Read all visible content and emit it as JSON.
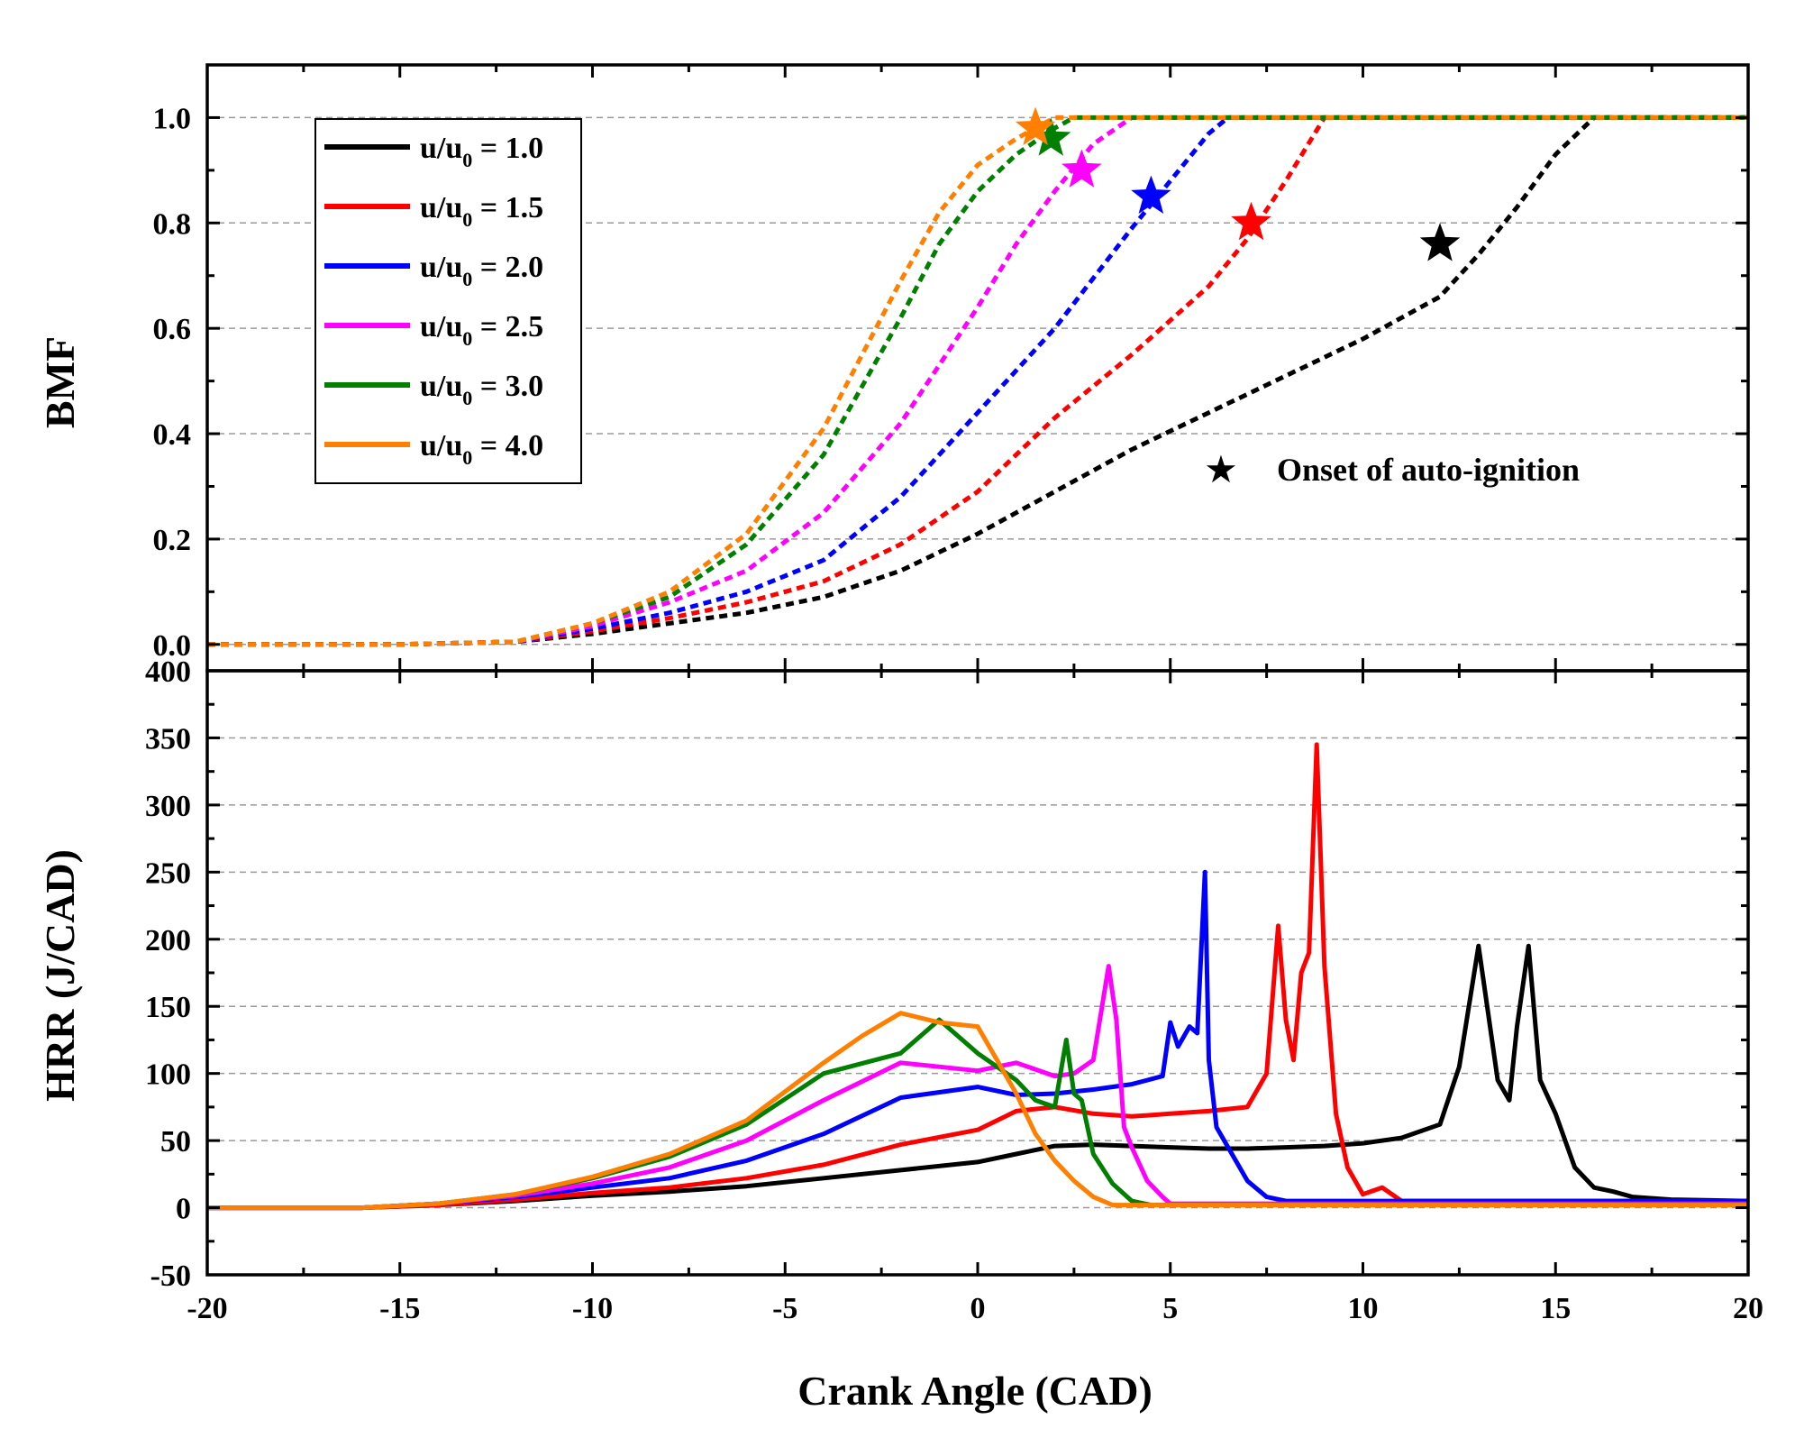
{
  "chart_data": [
    {
      "type": "line",
      "panel": "top",
      "title": "",
      "ylabel": "BMF",
      "xlim": [
        -20,
        20
      ],
      "ylim": [
        -0.05,
        1.1
      ],
      "xticks": [
        "-20",
        "-15",
        "-10",
        "-5",
        "0",
        "5",
        "10",
        "15",
        "20"
      ],
      "yticks": [
        "0.0",
        "0.2",
        "0.4",
        "0.6",
        "0.8",
        "1.0"
      ],
      "ytick_values": [
        0.0,
        0.2,
        0.4,
        0.6,
        0.8,
        1.0
      ],
      "grid": "horizontal dashed",
      "line_style": "dashed",
      "legend": {
        "position": "top-left",
        "entries": [
          {
            "sym": "u/u",
            "sub": "0",
            "rest": " = 1.0"
          },
          {
            "sym": "u/u",
            "sub": "0",
            "rest": " = 1.5"
          },
          {
            "sym": "u/u",
            "sub": "0",
            "rest": " = 2.0"
          },
          {
            "sym": "u/u",
            "sub": "0",
            "rest": " = 2.5"
          },
          {
            "sym": "u/u",
            "sub": "0",
            "rest": " = 3.0"
          },
          {
            "sym": "u/u",
            "sub": "0",
            "rest": " = 4.0"
          }
        ]
      },
      "annotation": {
        "symbol": "★",
        "text": "Onset of auto-ignition",
        "position": "right-middle"
      },
      "series": [
        {
          "color": "#000000",
          "x": [
            -20,
            -15,
            -12,
            -10,
            -8,
            -6,
            -4,
            -2,
            0,
            2,
            4,
            6,
            8,
            10,
            12,
            13,
            14,
            15,
            16,
            17,
            20
          ],
          "y": [
            0,
            0,
            0.005,
            0.02,
            0.04,
            0.06,
            0.09,
            0.14,
            0.21,
            0.29,
            0.37,
            0.44,
            0.51,
            0.58,
            0.66,
            0.74,
            0.83,
            0.93,
            1.0,
            1.0,
            1.0
          ],
          "marker": {
            "x": 12.0,
            "y": 0.76
          }
        },
        {
          "color": "#ff0000",
          "x": [
            -20,
            -15,
            -12,
            -10,
            -8,
            -6,
            -4,
            -2,
            0,
            2,
            4,
            6,
            7,
            8,
            9,
            10,
            20
          ],
          "y": [
            0,
            0,
            0.005,
            0.025,
            0.05,
            0.08,
            0.12,
            0.19,
            0.29,
            0.43,
            0.55,
            0.68,
            0.77,
            0.88,
            1.0,
            1.0,
            1.0
          ],
          "marker": {
            "x": 7.1,
            "y": 0.8
          }
        },
        {
          "color": "#0000ff",
          "x": [
            -20,
            -15,
            -12,
            -10,
            -8,
            -6,
            -4,
            -2,
            0,
            2,
            4,
            5,
            6,
            6.5,
            20
          ],
          "y": [
            0,
            0,
            0.005,
            0.03,
            0.06,
            0.1,
            0.16,
            0.28,
            0.44,
            0.6,
            0.79,
            0.88,
            0.97,
            1.0,
            1.0
          ],
          "marker": {
            "x": 4.5,
            "y": 0.85
          }
        },
        {
          "color": "#ff00ff",
          "x": [
            -20,
            -15,
            -12,
            -10,
            -8,
            -6,
            -4,
            -2,
            0,
            1,
            2,
            3,
            4,
            20
          ],
          "y": [
            0,
            0,
            0.005,
            0.035,
            0.08,
            0.14,
            0.25,
            0.42,
            0.64,
            0.76,
            0.86,
            0.95,
            1.0,
            1.0
          ],
          "marker": {
            "x": 2.7,
            "y": 0.9
          }
        },
        {
          "color": "#007f00",
          "x": [
            -20,
            -15,
            -12,
            -10,
            -8,
            -6,
            -4,
            -2,
            -1,
            0,
            1,
            2,
            2.5,
            20
          ],
          "y": [
            0,
            0,
            0.005,
            0.04,
            0.09,
            0.19,
            0.36,
            0.62,
            0.76,
            0.86,
            0.93,
            0.98,
            1.0,
            1.0
          ],
          "marker": {
            "x": 1.9,
            "y": 0.96
          }
        },
        {
          "color": "#ff7f00",
          "x": [
            -20,
            -15,
            -12,
            -10,
            -8,
            -6,
            -4,
            -2,
            -1,
            0,
            1,
            2,
            20
          ],
          "y": [
            0,
            0,
            0.005,
            0.04,
            0.1,
            0.21,
            0.41,
            0.69,
            0.82,
            0.91,
            0.96,
            1.0,
            1.0
          ],
          "marker": {
            "x": 1.5,
            "y": 0.98
          }
        }
      ]
    },
    {
      "type": "line",
      "panel": "bottom",
      "title": "",
      "xlabel": "Crank Angle (CAD)",
      "ylabel": "HRR (J/CAD)",
      "xlim": [
        -20,
        20
      ],
      "ylim": [
        -50,
        400
      ],
      "xticks": [
        "-20",
        "-15",
        "-10",
        "-5",
        "0",
        "5",
        "10",
        "15",
        "20"
      ],
      "xtick_values": [
        -20,
        -15,
        -10,
        -5,
        0,
        5,
        10,
        15,
        20
      ],
      "yticks": [
        "-50",
        "0",
        "50",
        "100",
        "150",
        "200",
        "250",
        "300",
        "350",
        "400"
      ],
      "ytick_values": [
        -50,
        0,
        50,
        100,
        150,
        200,
        250,
        300,
        350,
        400
      ],
      "grid": "horizontal dashed",
      "line_style": "solid",
      "series": [
        {
          "color": "#000000",
          "x": [
            -20,
            -16,
            -14,
            -12,
            -10,
            -8,
            -6,
            -4,
            -2,
            0,
            1,
            2,
            3,
            4,
            5,
            6,
            7,
            8,
            9,
            10,
            11,
            12,
            12.5,
            13,
            13.5,
            13.8,
            14,
            14.3,
            14.6,
            15,
            15.5,
            16,
            16.5,
            17,
            18,
            20
          ],
          "y": [
            0,
            0,
            2,
            5,
            9,
            12,
            16,
            22,
            28,
            34,
            40,
            46,
            47,
            46,
            45,
            44,
            44,
            45,
            46,
            48,
            52,
            62,
            105,
            195,
            95,
            80,
            135,
            195,
            95,
            70,
            30,
            15,
            12,
            8,
            6,
            5
          ]
        },
        {
          "color": "#ff0000",
          "x": [
            -20,
            -16,
            -14,
            -12,
            -10,
            -8,
            -6,
            -4,
            -2,
            0,
            1,
            2,
            3,
            4,
            5,
            6,
            7,
            7.5,
            7.8,
            8,
            8.2,
            8.4,
            8.6,
            8.8,
            9,
            9.3,
            9.6,
            10,
            10.5,
            11,
            12,
            14,
            16,
            18,
            20
          ],
          "y": [
            0,
            0,
            2,
            6,
            11,
            15,
            22,
            32,
            47,
            58,
            72,
            75,
            70,
            68,
            70,
            72,
            75,
            100,
            210,
            140,
            110,
            175,
            190,
            345,
            180,
            70,
            30,
            10,
            15,
            5,
            5,
            5,
            5,
            5,
            5
          ]
        },
        {
          "color": "#0000ff",
          "x": [
            -20,
            -16,
            -14,
            -12,
            -10,
            -8,
            -6,
            -4,
            -2,
            0,
            1,
            2,
            3,
            4,
            4.8,
            5,
            5.2,
            5.5,
            5.7,
            5.9,
            6,
            6.2,
            6.5,
            7,
            7.5,
            8,
            10,
            20
          ],
          "y": [
            0,
            0,
            3,
            8,
            15,
            22,
            35,
            55,
            82,
            90,
            84,
            85,
            88,
            92,
            98,
            138,
            120,
            135,
            130,
            250,
            110,
            60,
            45,
            20,
            8,
            5,
            5,
            5
          ]
        },
        {
          "color": "#ff00ff",
          "x": [
            -20,
            -16,
            -14,
            -12,
            -10,
            -8,
            -6,
            -4,
            -2,
            0,
            1,
            2,
            2.5,
            3,
            3.4,
            3.6,
            3.8,
            4,
            4.4,
            4.8,
            5,
            20
          ],
          "y": [
            0,
            0,
            3,
            9,
            18,
            30,
            50,
            80,
            108,
            102,
            108,
            98,
            100,
            110,
            180,
            140,
            60,
            45,
            20,
            8,
            3,
            3
          ]
        },
        {
          "color": "#007f00",
          "x": [
            -20,
            -16,
            -14,
            -12,
            -10,
            -8,
            -6,
            -4,
            -2,
            -1,
            0,
            1,
            1.5,
            2,
            2.3,
            2.5,
            2.7,
            3,
            3.5,
            4,
            4.5,
            20
          ],
          "y": [
            0,
            0,
            3,
            10,
            22,
            38,
            62,
            100,
            115,
            140,
            115,
            95,
            80,
            75,
            125,
            85,
            80,
            40,
            18,
            5,
            2,
            2
          ]
        },
        {
          "color": "#ff7f00",
          "x": [
            -20,
            -16,
            -14,
            -12,
            -10,
            -8,
            -6,
            -4,
            -3,
            -2,
            -1,
            0,
            0.5,
            1,
            1.5,
            2,
            2.5,
            3,
            3.5,
            4,
            20
          ],
          "y": [
            0,
            0,
            3,
            10,
            23,
            40,
            65,
            108,
            128,
            145,
            138,
            135,
            110,
            85,
            55,
            35,
            20,
            8,
            2,
            2,
            2
          ]
        }
      ]
    }
  ]
}
